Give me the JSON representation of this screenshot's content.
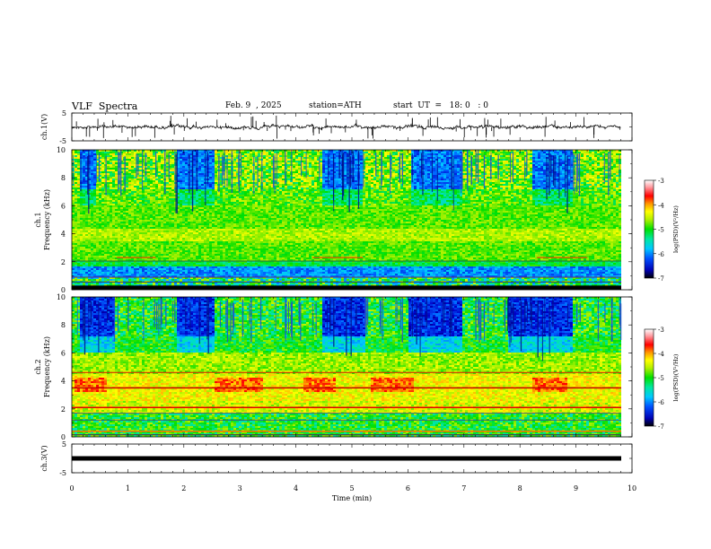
{
  "header": {
    "title": "VLF  Spectra",
    "date": "Feb. 9  , 2025",
    "station": "station=ATH",
    "start_ut": "start  UT  =   18: 0   : 0"
  },
  "chart_data": [
    {
      "type": "line",
      "title": "",
      "ylabel": "ch.1(V)",
      "ylim": [
        -5,
        5
      ],
      "y_tick_labels": [
        "5",
        "-5"
      ],
      "xlim": [
        0,
        10
      ],
      "baseline_value": 0,
      "trace_color": "#000000"
    },
    {
      "type": "heatmap",
      "ylabel_channel": "ch.1",
      "ylabel": "Frequency  (kHz)",
      "ylim": [
        0,
        10
      ],
      "y_ticks": [
        "0",
        "2",
        "4",
        "6",
        "8",
        "10"
      ],
      "xlim": [
        0,
        10
      ],
      "colorbar": {
        "label": "log(PSD)(V²/Hz)",
        "ticks": [
          "-3",
          "-4",
          "-5",
          "-6",
          "-7"
        ],
        "range": [
          -7,
          -3
        ]
      }
    },
    {
      "type": "heatmap",
      "ylabel_channel": "ch.2",
      "ylabel": "Frequency  (kHz)",
      "ylim": [
        0,
        10
      ],
      "y_ticks": [
        "0",
        "2",
        "4",
        "6",
        "8",
        "10"
      ],
      "xlim": [
        0,
        10
      ],
      "colorbar": {
        "label": "log(PSD)(V²/Hz)",
        "ticks": [
          "-3",
          "-4",
          "-5",
          "-6",
          "-7"
        ],
        "range": [
          -7,
          -3
        ]
      }
    },
    {
      "type": "line",
      "title": "",
      "ylabel": "ch.3(V)",
      "ylim": [
        -5,
        5
      ],
      "y_tick_labels": [
        "5",
        "-5"
      ],
      "xlim": [
        0,
        10
      ],
      "baseline_value": 0,
      "trace_color": "#000000",
      "xlabel": "Time  (min)",
      "x_ticks": [
        "0",
        "1",
        "2",
        "3",
        "4",
        "5",
        "6",
        "7",
        "8",
        "9",
        "10"
      ]
    }
  ],
  "colors": {
    "colormap": [
      "#000000",
      "#0000c8",
      "#0060ff",
      "#00c8ff",
      "#00e8a0",
      "#00e000",
      "#a0f000",
      "#ffff00",
      "#ff9600",
      "#ff0000",
      "#ff9aa0",
      "#ffffff"
    ]
  }
}
